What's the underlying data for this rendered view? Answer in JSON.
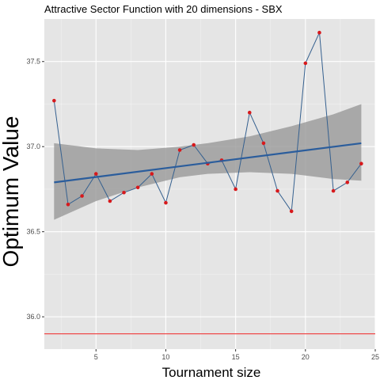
{
  "chart_data": {
    "type": "line",
    "title": "Attractive Sector Function with 20 dimensions -  SBX",
    "xlabel": "Tournament size",
    "ylabel": "Optimum Value",
    "xlim": [
      1.3,
      25
    ],
    "ylim": [
      35.81,
      37.75
    ],
    "x_ticks": [
      5,
      10,
      15,
      20,
      25
    ],
    "x_tick_labels": [
      "5",
      "10",
      "15",
      "20",
      "25"
    ],
    "y_ticks": [
      36.0,
      36.5,
      37.0,
      37.5
    ],
    "y_tick_labels": [
      "36.0",
      "36.5",
      "37.0",
      "37.5"
    ],
    "grid": true,
    "x": [
      2,
      3,
      4,
      5,
      6,
      7,
      8,
      9,
      10,
      11,
      12,
      13,
      14,
      15,
      16,
      17,
      18,
      19,
      20,
      21,
      22,
      23,
      24
    ],
    "y": [
      37.27,
      36.66,
      36.71,
      36.84,
      36.68,
      36.73,
      36.76,
      36.84,
      36.67,
      36.98,
      37.01,
      36.9,
      36.92,
      36.75,
      37.2,
      37.02,
      36.74,
      36.62,
      37.49,
      37.67,
      36.74,
      36.79,
      36.9
    ],
    "trend": {
      "x": [
        2,
        24
      ],
      "y": [
        36.79,
        37.02
      ]
    },
    "band": {
      "x": [
        2,
        5,
        8,
        11,
        13,
        16,
        19,
        22,
        24
      ],
      "lower": [
        36.57,
        36.68,
        36.76,
        36.82,
        36.84,
        36.85,
        36.84,
        36.81,
        36.8
      ],
      "upper": [
        37.02,
        36.99,
        36.98,
        37.0,
        37.02,
        37.06,
        37.12,
        37.19,
        37.25
      ]
    },
    "reference_line": {
      "y": 35.9
    },
    "colors": {
      "panel": "#e5e5e5",
      "grid_major": "#ffffff",
      "series_line": "#35608f",
      "points": "#d7191c",
      "trend": "#2b5d9c",
      "band": "#999999",
      "reference": "#ef4b4b"
    }
  }
}
